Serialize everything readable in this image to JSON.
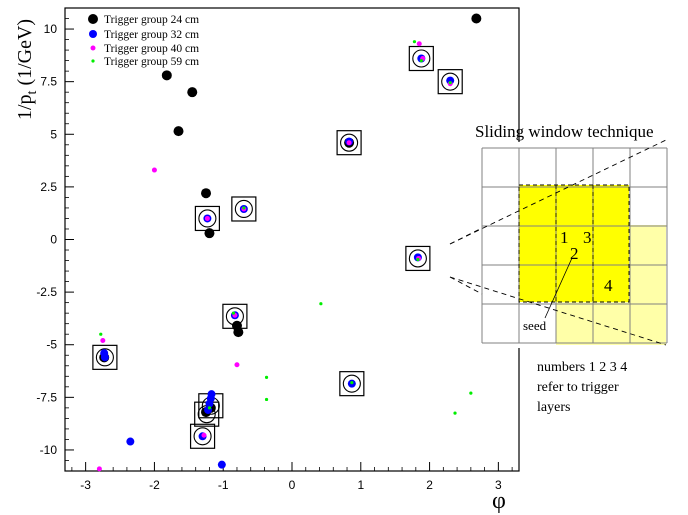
{
  "chart_data": {
    "type": "scatter",
    "xlabel": "φ",
    "ylabel_main": "1/p",
    "ylabel_sub": "t",
    "ylabel_unit": " (1/GeV)",
    "xlim": [
      -3.3,
      3.3
    ],
    "ylim": [
      -11,
      11
    ],
    "x_ticks": [
      -3,
      -2,
      -1,
      0,
      1,
      2,
      3
    ],
    "x_tick_labels": [
      "-3",
      "-2",
      "-1",
      "0",
      "1",
      "2",
      "3"
    ],
    "y_ticks": [
      -10,
      -7.5,
      -5,
      -2.5,
      0,
      2.5,
      5,
      7.5,
      10
    ],
    "y_tick_labels": [
      "-10",
      "-7.5",
      "-5",
      "-2.5",
      "0",
      "2.5",
      "5",
      "7.5",
      "10"
    ],
    "series": [
      {
        "name": "Trigger group 24 cm",
        "color": "#000000",
        "marker": "circle-large",
        "points": [
          [
            2.68,
            10.5
          ],
          [
            -1.82,
            7.8
          ],
          [
            -1.45,
            7.0
          ],
          [
            -1.65,
            5.15
          ],
          [
            -1.25,
            2.2
          ],
          [
            -1.2,
            0.3
          ],
          [
            0.83,
            4.6
          ],
          [
            -0.8,
            -4.1
          ],
          [
            -0.78,
            -4.4
          ],
          [
            -1.18,
            -8.0
          ],
          [
            -1.25,
            -8.2
          ],
          [
            -2.73,
            -5.6
          ]
        ]
      },
      {
        "name": "Trigger group 32 cm",
        "color": "#0000ff",
        "marker": "circle-medium",
        "points": [
          [
            1.88,
            8.6
          ],
          [
            2.3,
            7.55
          ],
          [
            0.83,
            4.65
          ],
          [
            -0.7,
            1.45
          ],
          [
            -1.23,
            1.0
          ],
          [
            -0.83,
            -3.6
          ],
          [
            -2.73,
            -5.4
          ],
          [
            -2.72,
            -5.6
          ],
          [
            0.87,
            -6.85
          ],
          [
            -1.17,
            -7.35
          ],
          [
            -1.18,
            -7.55
          ],
          [
            -1.2,
            -7.8
          ],
          [
            -1.22,
            -8.1
          ],
          [
            -1.3,
            -9.35
          ],
          [
            -2.35,
            -9.6
          ],
          [
            -1.02,
            -10.7
          ],
          [
            1.83,
            -0.85
          ]
        ]
      },
      {
        "name": "Trigger group 40 cm",
        "color": "#ff00ff",
        "marker": "circle-small",
        "points": [
          [
            1.85,
            9.3
          ],
          [
            1.9,
            8.6
          ],
          [
            2.3,
            7.4
          ],
          [
            -2.0,
            3.3
          ],
          [
            0.83,
            4.6
          ],
          [
            -0.7,
            1.45
          ],
          [
            -1.23,
            1.0
          ],
          [
            -0.83,
            -3.6
          ],
          [
            -2.75,
            -4.8
          ],
          [
            -0.8,
            -5.95
          ],
          [
            -1.28,
            -9.3
          ],
          [
            -2.8,
            -10.9
          ],
          [
            1.84,
            -0.9
          ]
        ]
      },
      {
        "name": "Trigger group 59 cm",
        "color": "#00ee00",
        "marker": "dot",
        "points": [
          [
            1.78,
            9.4
          ],
          [
            1.88,
            8.5
          ],
          [
            2.3,
            7.45
          ],
          [
            0.42,
            -3.05
          ],
          [
            -2.78,
            -4.5
          ],
          [
            -0.85,
            -3.5
          ],
          [
            -0.37,
            -6.55
          ],
          [
            -0.37,
            -7.6
          ],
          [
            2.6,
            -7.3
          ],
          [
            2.37,
            -8.25
          ],
          [
            0.87,
            -6.8
          ],
          [
            -1.2,
            -8.0
          ],
          [
            1.83,
            -0.95
          ],
          [
            -0.7,
            1.5
          ]
        ]
      }
    ],
    "highlighted": [
      [
        1.88,
        8.6
      ],
      [
        2.3,
        7.5
      ],
      [
        0.83,
        4.6
      ],
      [
        -0.7,
        1.45
      ],
      [
        -1.23,
        1.0
      ],
      [
        -0.83,
        -3.65
      ],
      [
        -2.72,
        -5.6
      ],
      [
        0.87,
        -6.85
      ],
      [
        -1.18,
        -7.9
      ],
      [
        -1.24,
        -8.3
      ],
      [
        -1.3,
        -9.35
      ],
      [
        1.83,
        -0.9
      ]
    ],
    "legend_position": "top-left",
    "grid": false
  },
  "inset": {
    "title": "Sliding window technique",
    "seed_label": "seed",
    "cell_labels": [
      "1",
      "2",
      "3",
      "4"
    ],
    "grid_rows": 5,
    "grid_cols": 5
  },
  "note": [
    "numbers 1 2 3 4",
    "refer to trigger",
    "layers"
  ]
}
